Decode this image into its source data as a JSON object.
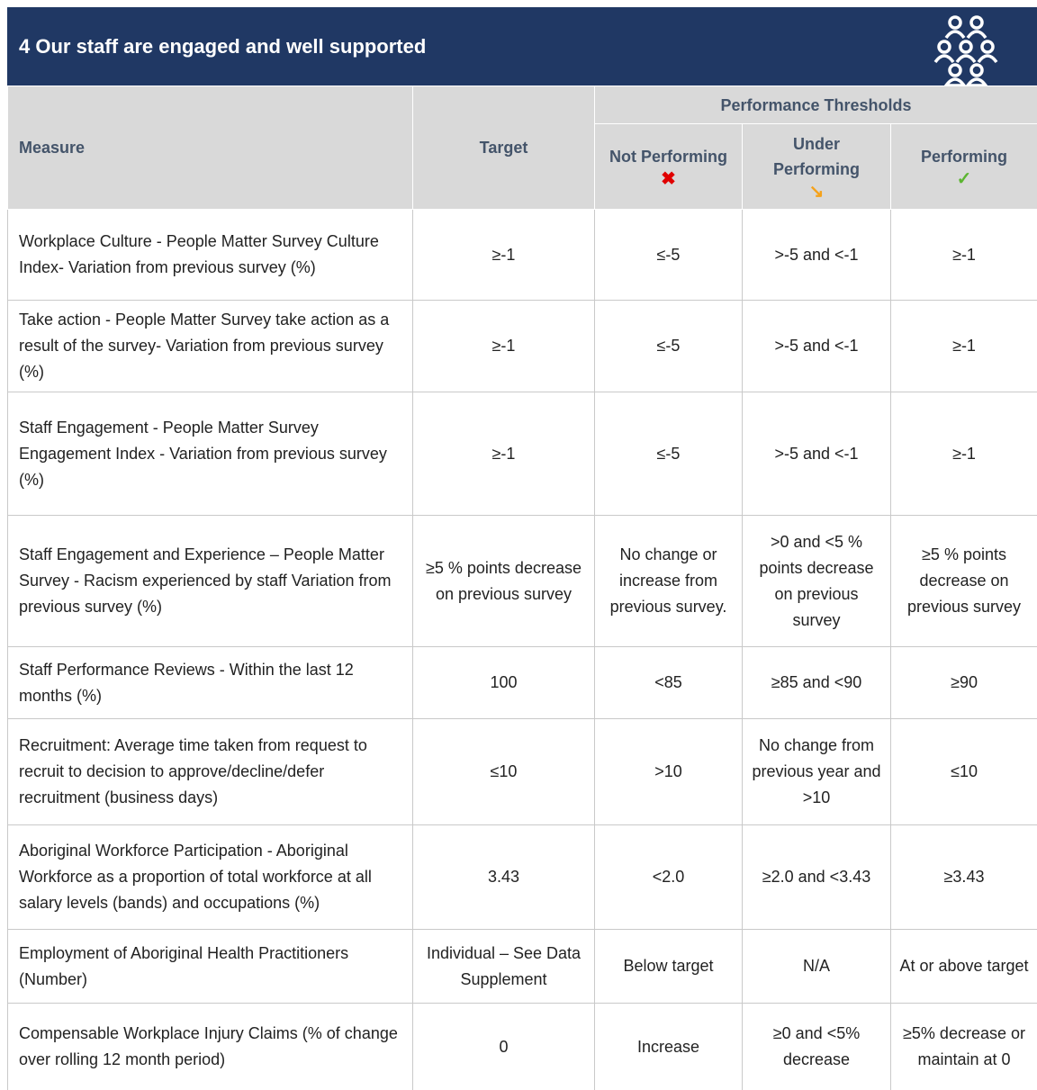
{
  "header": {
    "title": "4 Our staff are engaged and well supported"
  },
  "table": {
    "group_header": "Performance Thresholds",
    "columns": [
      "Measure",
      "Target",
      "Not Performing",
      "Under Performing",
      "Performing"
    ],
    "rows": [
      [
        "Workplace Culture - People Matter Survey Culture Index- Variation from previous survey (%)",
        "≥-1",
        "≤-5",
        ">-5 and <-1",
        "≥-1"
      ],
      [
        "Take action - People Matter Survey take action as a result of the survey- Variation from previous survey (%)",
        "≥-1",
        "≤-5",
        ">-5 and <-1",
        "≥-1"
      ],
      [
        "Staff Engagement - People Matter Survey Engagement Index - Variation from previous survey (%)",
        "≥-1",
        "≤-5",
        ">-5 and <-1",
        "≥-1"
      ],
      [
        "Staff Engagement and Experience – People Matter Survey - Racism experienced by staff Variation from previous survey (%)",
        "≥5 % points decrease on previous survey",
        "No change or increase from previous survey.",
        ">0 and <5 % points decrease on previous survey",
        "≥5 % points decrease on previous survey"
      ],
      [
        "Staff Performance Reviews - Within the last 12 months (%)",
        "100",
        "<85",
        "≥85 and <90",
        "≥90"
      ],
      [
        "Recruitment: Average time taken from request to recruit to decision to approve/decline/defer recruitment (business days)",
        "≤10",
        ">10",
        "No change from previous year and >10",
        "≤10"
      ],
      [
        "Aboriginal Workforce Participation - Aboriginal Workforce as a proportion of total workforce at all salary levels (bands) and occupations (%)",
        "3.43",
        "<2.0",
        "≥2.0 and <3.43",
        "≥3.43"
      ],
      [
        "Employment of Aboriginal Health Practitioners (Number)",
        "Individual – See Data Supplement",
        "Below target",
        "N/A",
        "At or above target"
      ],
      [
        "Compensable Workplace Injury Claims (% of change over rolling 12 month period)",
        "0",
        "Increase",
        "≥0 and <5% decrease",
        "≥5% decrease or maintain at 0"
      ]
    ]
  }
}
